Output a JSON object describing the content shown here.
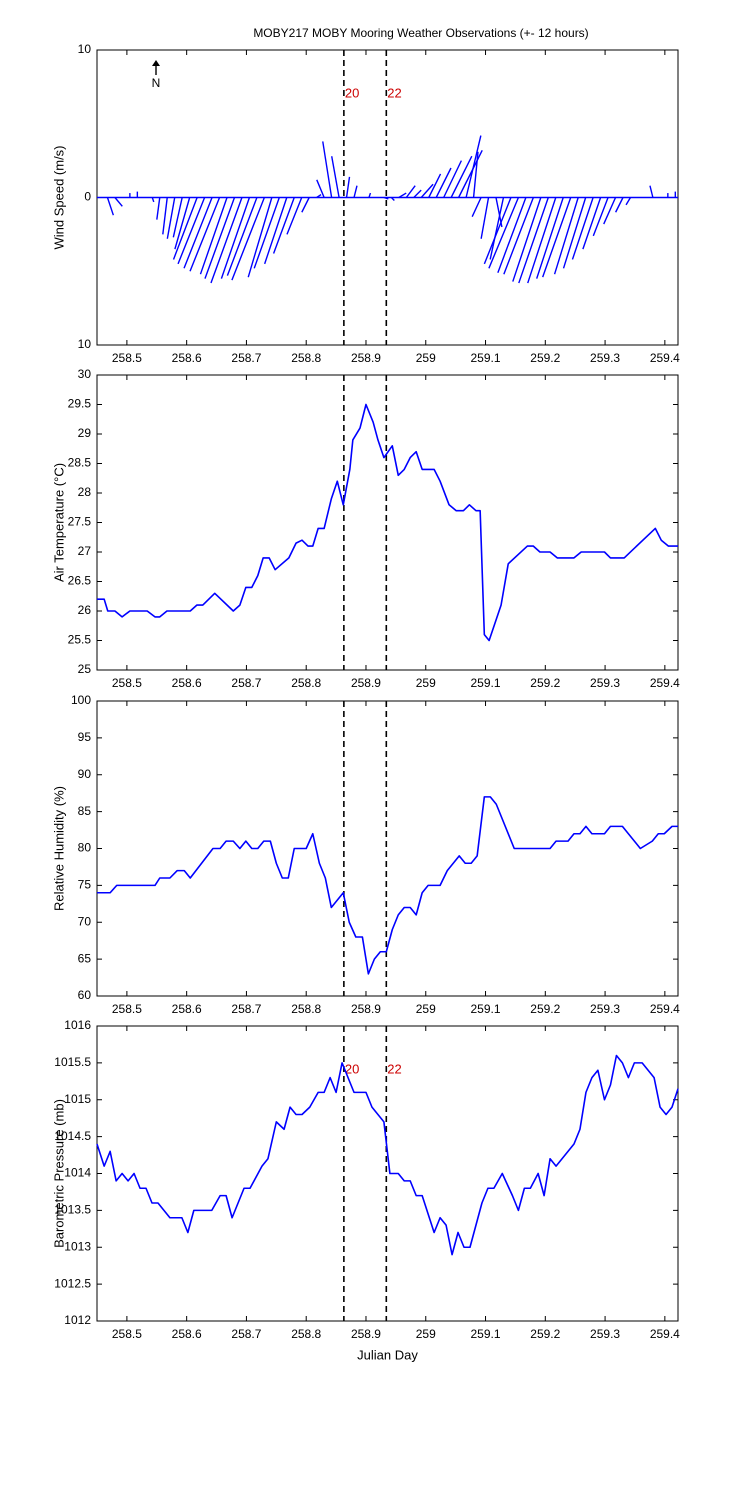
{
  "chart_data": [
    {
      "type": "stick",
      "title": "MOBY217 MOBY Mooring Weather Observations (+- 12 hours)",
      "ylabel": "Wind Speed (m/s)",
      "annotation": "N",
      "color": "#0000ff",
      "xlim": [
        258.45,
        259.422
      ],
      "xticks": [
        258.5,
        258.6,
        258.7,
        258.8,
        258.9,
        259,
        259.1,
        259.2,
        259.3,
        259.4
      ],
      "ylim": [
        -10,
        10
      ],
      "yticks": [
        {
          "value": -10,
          "label": "10"
        },
        0,
        10
      ],
      "vlines": [
        {
          "value": 258.863,
          "label": "20"
        },
        {
          "value": 258.934,
          "label": "22"
        }
      ],
      "x": [
        258.455,
        258.4675,
        258.48,
        258.4925,
        258.505,
        258.5175,
        258.53,
        258.5425,
        258.555,
        258.5675,
        258.58,
        258.5925,
        258.605,
        258.6175,
        258.63,
        258.6425,
        258.655,
        258.6675,
        258.68,
        258.6925,
        258.705,
        258.7175,
        258.73,
        258.7425,
        258.755,
        258.7675,
        258.78,
        258.7925,
        258.805,
        258.8175,
        258.83,
        258.8425,
        258.855,
        258.8675,
        258.88,
        258.8925,
        258.905,
        258.9175,
        258.93,
        258.9425,
        258.955,
        258.9675,
        258.98,
        258.9925,
        259.005,
        259.0175,
        259.03,
        259.0425,
        259.055,
        259.0675,
        259.08,
        259.0925,
        259.105,
        259.1175,
        259.13,
        259.1425,
        259.155,
        259.1675,
        259.18,
        259.1925,
        259.205,
        259.2175,
        259.23,
        259.2425,
        259.255,
        259.2675,
        259.28,
        259.2925,
        259.305,
        259.3175,
        259.33,
        259.3425,
        259.355,
        259.3675,
        259.38,
        259.3925,
        259.405,
        259.4175
      ],
      "u": [
        0,
        0.4,
        0.5,
        0,
        0,
        0,
        0,
        0.1,
        -0.2,
        -0.3,
        -0.5,
        -0.6,
        -1.0,
        -1.6,
        -1.8,
        -1.9,
        -2.0,
        -1.8,
        -2.0,
        -2.1,
        -1.9,
        -2.0,
        -2.2,
        -1.6,
        -1.7,
        -1.5,
        -1.4,
        -1.0,
        -0.5,
        0.3,
        -0.5,
        -0.6,
        -0.5,
        0.2,
        0.2,
        0,
        0.1,
        0,
        0.3,
        0.2,
        0.5,
        0.6,
        0.5,
        0.8,
        0.8,
        1.0,
        1.2,
        1.4,
        1.6,
        1.0,
        0.3,
        -0.6,
        -0.5,
        0.4,
        -0.9,
        -1.8,
        -2.0,
        -1.9,
        -2.0,
        -1.9,
        -2.0,
        -1.9,
        -1.8,
        -1.9,
        -1.6,
        -1.5,
        -1.4,
        -1.2,
        -1.0,
        -0.8,
        -0.5,
        -0.3,
        0,
        0,
        -0.2,
        0,
        0,
        0
      ],
      "v": [
        0,
        -1.2,
        -0.6,
        0,
        0.3,
        0.4,
        0,
        -0.3,
        -1.5,
        -2.5,
        -2.8,
        -2.7,
        -3.5,
        -4.2,
        -4.5,
        -4.8,
        -5.0,
        -5.2,
        -5.5,
        -5.8,
        -5.5,
        -5.3,
        -5.6,
        -5.4,
        -4.8,
        -4.5,
        -3.8,
        -2.5,
        -1.0,
        0.2,
        1.2,
        3.8,
        2.8,
        1.4,
        0.8,
        0,
        0.3,
        0,
        -0.1,
        -0.2,
        0.3,
        0.8,
        0.5,
        0.9,
        1.6,
        2.0,
        2.5,
        2.8,
        3.2,
        4.2,
        3.1,
        -1.3,
        -2.8,
        -2.0,
        -4.2,
        -4.5,
        -4.8,
        -5.1,
        -5.2,
        -5.7,
        -5.8,
        -5.8,
        -5.5,
        -5.4,
        -5.2,
        -4.8,
        -4.2,
        -3.5,
        -2.6,
        -1.8,
        -1.0,
        -0.5,
        0,
        0,
        0.8,
        0,
        0.3,
        0.4
      ]
    },
    {
      "type": "line",
      "ylabel": "Air Temperature (°C)",
      "color": "#0000ff",
      "xlim": [
        258.45,
        259.422
      ],
      "xticks": [
        258.5,
        258.6,
        258.7,
        258.8,
        258.9,
        259,
        259.1,
        259.2,
        259.3,
        259.4
      ],
      "ylim": [
        25,
        30
      ],
      "yticks": [
        25,
        25.5,
        26,
        26.5,
        27,
        27.5,
        28,
        28.5,
        29,
        29.5,
        30
      ],
      "vlines": [
        258.863,
        258.934
      ],
      "x": [
        258.45,
        258.462,
        258.468,
        258.48,
        258.492,
        258.505,
        258.534,
        258.547,
        258.555,
        258.567,
        258.606,
        258.617,
        258.627,
        258.647,
        258.678,
        258.689,
        258.699,
        258.709,
        258.719,
        258.728,
        258.738,
        258.748,
        258.771,
        258.783,
        258.793,
        258.803,
        258.811,
        258.82,
        258.83,
        258.842,
        258.852,
        258.862,
        258.873,
        258.878,
        258.89,
        258.9,
        258.912,
        258.92,
        258.93,
        258.944,
        258.954,
        258.964,
        258.974,
        258.984,
        258.994,
        259.014,
        259.024,
        259.039,
        259.051,
        259.063,
        259.073,
        259.084,
        259.091,
        259.098,
        259.106,
        259.126,
        259.138,
        259.17,
        259.18,
        259.191,
        259.208,
        259.22,
        259.248,
        259.26,
        259.299,
        259.309,
        259.332,
        259.384,
        259.394,
        259.406,
        259.422
      ],
      "values": [
        26.2,
        26.2,
        26.0,
        26.0,
        25.9,
        26.0,
        26.0,
        25.9,
        25.9,
        26.0,
        26.0,
        26.1,
        26.1,
        26.3,
        26.0,
        26.1,
        26.4,
        26.4,
        26.6,
        26.9,
        26.9,
        26.7,
        26.9,
        27.15,
        27.2,
        27.1,
        27.1,
        27.4,
        27.4,
        27.9,
        28.2,
        27.8,
        28.4,
        28.9,
        29.1,
        29.5,
        29.2,
        28.9,
        28.6,
        28.8,
        28.3,
        28.4,
        28.6,
        28.7,
        28.4,
        28.4,
        28.2,
        27.8,
        27.7,
        27.7,
        27.8,
        27.7,
        27.7,
        25.6,
        25.5,
        26.1,
        26.8,
        27.1,
        27.1,
        27.0,
        27.0,
        26.9,
        26.9,
        27.0,
        27.0,
        26.9,
        26.9,
        27.4,
        27.2,
        27.1,
        27.1
      ]
    },
    {
      "type": "line",
      "ylabel": "Relative Humidity (%)",
      "color": "#0000ff",
      "xlim": [
        258.45,
        259.422
      ],
      "xticks": [
        258.5,
        258.6,
        258.7,
        258.8,
        258.9,
        259,
        259.1,
        259.2,
        259.3,
        259.4
      ],
      "ylim": [
        60,
        100
      ],
      "yticks": [
        60,
        65,
        70,
        75,
        80,
        85,
        90,
        95,
        100
      ],
      "vlines": [
        258.863,
        258.934
      ],
      "x": [
        258.45,
        258.472,
        258.483,
        258.547,
        258.555,
        258.572,
        258.584,
        258.596,
        258.606,
        258.644,
        258.656,
        258.666,
        258.678,
        258.689,
        258.699,
        258.709,
        258.719,
        258.729,
        258.74,
        258.75,
        258.76,
        258.77,
        258.78,
        258.8,
        258.811,
        258.822,
        258.832,
        258.842,
        258.852,
        258.862,
        258.872,
        258.883,
        258.894,
        258.904,
        258.914,
        258.924,
        258.934,
        258.944,
        258.954,
        258.964,
        258.974,
        258.984,
        258.994,
        259.004,
        259.024,
        259.036,
        259.056,
        259.066,
        259.076,
        259.086,
        259.098,
        259.108,
        259.118,
        259.148,
        259.208,
        259.218,
        259.238,
        259.248,
        259.258,
        259.268,
        259.278,
        259.299,
        259.309,
        259.329,
        259.359,
        259.379,
        259.389,
        259.399,
        259.412,
        259.422
      ],
      "values": [
        74,
        74,
        75,
        75,
        76,
        76,
        77,
        77,
        76,
        80,
        80,
        81,
        81,
        80,
        81,
        80,
        80,
        81,
        81,
        78,
        76,
        76,
        80,
        80,
        82,
        78,
        76,
        72,
        73,
        74,
        70,
        68,
        68,
        63,
        65,
        66,
        66,
        69,
        71,
        72,
        72,
        71,
        74,
        75,
        75,
        77,
        79,
        78,
        78,
        79,
        87,
        87,
        86,
        80,
        80,
        81,
        81,
        82,
        82,
        83,
        82,
        82,
        83,
        83,
        80,
        81,
        82,
        82,
        83,
        83
      ]
    },
    {
      "type": "line",
      "ylabel": "Barometric Pressure (mb)",
      "xlabel": "Julian Day",
      "color": "#0000ff",
      "xlim": [
        258.45,
        259.422
      ],
      "xticks": [
        258.5,
        258.6,
        258.7,
        258.8,
        258.9,
        259,
        259.1,
        259.2,
        259.3,
        259.4
      ],
      "ylim": [
        1012,
        1016
      ],
      "yticks": [
        1012,
        1012.5,
        1013,
        1013.5,
        1014,
        1014.5,
        1015,
        1015.5,
        1016
      ],
      "vlines": [
        {
          "value": 258.863,
          "label": "20"
        },
        {
          "value": 258.934,
          "label": "22"
        }
      ],
      "x": [
        258.45,
        258.462,
        258.472,
        258.482,
        258.492,
        258.502,
        258.512,
        258.522,
        258.532,
        258.542,
        258.552,
        258.572,
        258.592,
        258.602,
        258.612,
        258.642,
        258.656,
        258.666,
        258.676,
        258.696,
        258.706,
        258.726,
        258.736,
        258.75,
        258.763,
        258.773,
        258.783,
        258.793,
        258.806,
        258.82,
        258.83,
        258.84,
        258.85,
        258.86,
        258.88,
        258.9,
        258.91,
        258.93,
        258.94,
        258.954,
        258.964,
        258.974,
        258.984,
        258.994,
        259.014,
        259.024,
        259.034,
        259.044,
        259.054,
        259.064,
        259.074,
        259.094,
        259.104,
        259.114,
        259.128,
        259.145,
        259.155,
        259.165,
        259.175,
        259.188,
        259.198,
        259.208,
        259.218,
        259.248,
        259.258,
        259.268,
        259.278,
        259.288,
        259.299,
        259.309,
        259.319,
        259.329,
        259.339,
        259.349,
        259.362,
        259.382,
        259.392,
        259.402,
        259.412,
        259.422
      ],
      "values": [
        1014.4,
        1014.1,
        1014.3,
        1013.9,
        1014.0,
        1013.9,
        1014.0,
        1013.8,
        1013.8,
        1013.6,
        1013.6,
        1013.4,
        1013.4,
        1013.2,
        1013.5,
        1013.5,
        1013.7,
        1013.7,
        1013.4,
        1013.8,
        1013.8,
        1014.1,
        1014.2,
        1014.7,
        1014.6,
        1014.9,
        1014.8,
        1014.8,
        1014.9,
        1015.1,
        1015.1,
        1015.3,
        1015.1,
        1015.5,
        1015.1,
        1015.1,
        1014.9,
        1014.7,
        1014.0,
        1014.0,
        1013.9,
        1013.9,
        1013.7,
        1013.7,
        1013.2,
        1013.4,
        1013.3,
        1012.9,
        1013.2,
        1013.0,
        1013.0,
        1013.6,
        1013.8,
        1013.8,
        1014.0,
        1013.7,
        1013.5,
        1013.8,
        1013.8,
        1014.0,
        1013.7,
        1014.2,
        1014.1,
        1014.4,
        1014.6,
        1015.1,
        1015.3,
        1015.4,
        1015.0,
        1015.2,
        1015.6,
        1015.5,
        1015.3,
        1015.5,
        1015.5,
        1015.3,
        1014.9,
        1014.8,
        1014.9,
        1015.15
      ]
    }
  ]
}
